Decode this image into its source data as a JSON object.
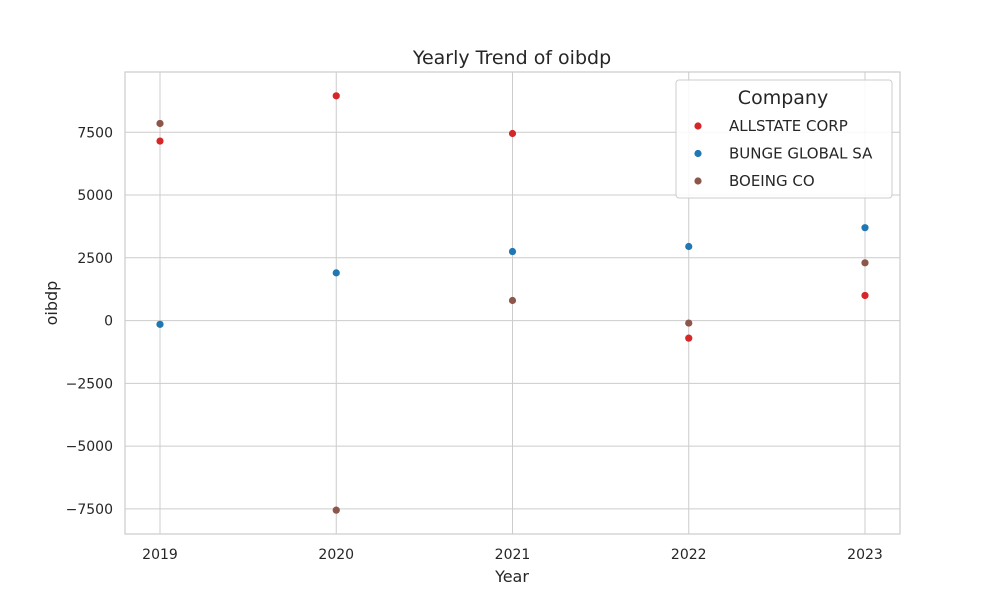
{
  "chart_data": {
    "type": "scatter",
    "title": "Yearly Trend of oibdp",
    "xlabel": "Year",
    "ylabel": "oibdp",
    "x": [
      "2019",
      "2020",
      "2021",
      "2022",
      "2023"
    ],
    "ylim": [
      -8500,
      9900
    ],
    "yticks": [
      -7500,
      -5000,
      -2500,
      0,
      2500,
      5000,
      7500
    ],
    "grid": true,
    "legend": {
      "title": "Company",
      "placement": "top-right"
    },
    "series": [
      {
        "name": "ALLSTATE CORP",
        "color": "#d62728",
        "values": [
          7150,
          8950,
          7450,
          -700,
          1000
        ]
      },
      {
        "name": "BUNGE GLOBAL SA",
        "color": "#1f77b4",
        "values": [
          -150,
          1900,
          2750,
          2950,
          3700
        ]
      },
      {
        "name": "BOEING CO",
        "color": "#8c564b",
        "values": [
          7850,
          -7550,
          800,
          -100,
          2300
        ]
      }
    ]
  }
}
